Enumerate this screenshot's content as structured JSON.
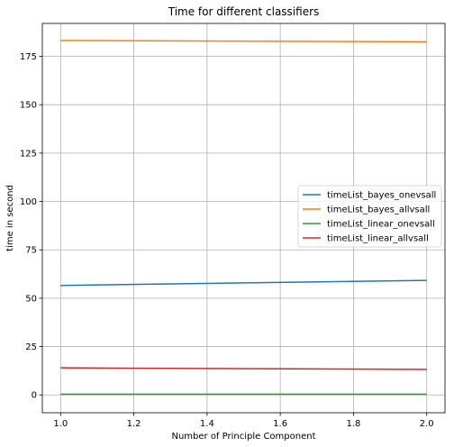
{
  "chart_data": {
    "type": "line",
    "title": "Time for different classifiers",
    "xlabel": "Number of Principle Component",
    "ylabel": "time in second",
    "xlim": [
      0.95,
      2.05
    ],
    "ylim": [
      -9.2,
      192
    ],
    "xticks": [
      1.0,
      1.2,
      1.4,
      1.6,
      1.8,
      2.0
    ],
    "xtick_labels": [
      "1.0",
      "1.2",
      "1.4",
      "1.6",
      "1.8",
      "2.0"
    ],
    "yticks": [
      0,
      25,
      50,
      75,
      100,
      125,
      150,
      175
    ],
    "ytick_labels": [
      "0",
      "25",
      "50",
      "75",
      "100",
      "125",
      "150",
      "175"
    ],
    "grid": true,
    "legend_position": "center-right",
    "x": [
      1.0,
      2.0
    ],
    "series": [
      {
        "name": "timeList_bayes_onevsall",
        "color": "#1f77b4",
        "values": [
          56.6,
          59.2
        ]
      },
      {
        "name": "timeList_bayes_allvsall",
        "color": "#ff7f0e",
        "values": [
          183.2,
          182.5
        ]
      },
      {
        "name": "timeList_linear_onevsall",
        "color": "#2ca02c",
        "values": [
          0.4,
          0.4
        ]
      },
      {
        "name": "timeList_linear_allvsall",
        "color": "#d62728",
        "values": [
          14.0,
          13.2
        ]
      }
    ]
  }
}
